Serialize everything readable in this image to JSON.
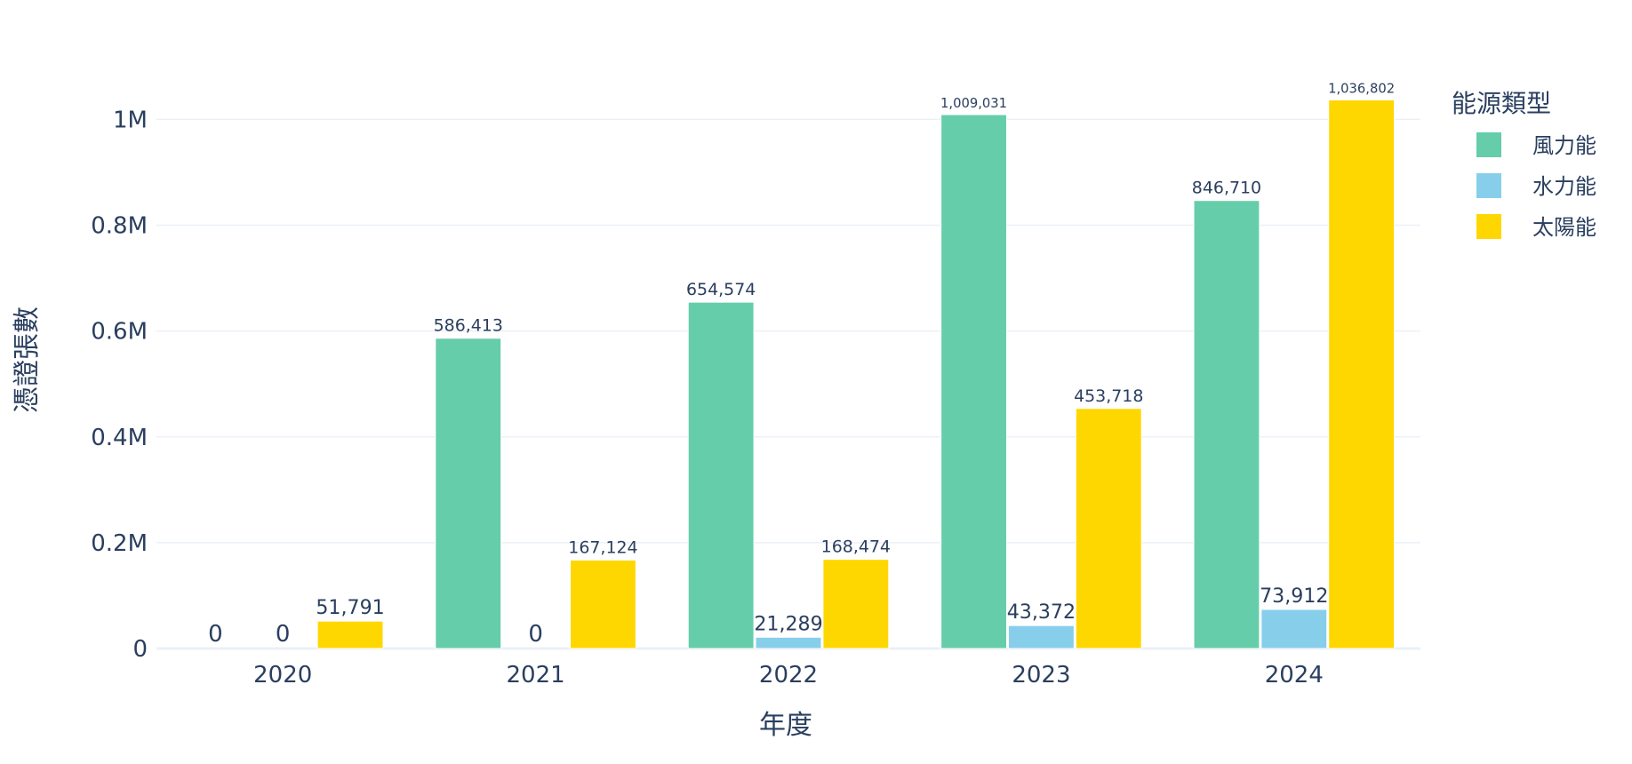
{
  "chart_data": {
    "type": "bar",
    "barmode": "group",
    "categories": [
      "2020",
      "2021",
      "2022",
      "2023",
      "2024"
    ],
    "series": [
      {
        "name": "風力能",
        "color": "#66cdaa",
        "values": [
          0,
          586413,
          654574,
          1009031,
          846710
        ]
      },
      {
        "name": "水力能",
        "color": "#87ceeb",
        "values": [
          0,
          0,
          21289,
          43372,
          73912
        ]
      },
      {
        "name": "太陽能",
        "color": "#ffd700",
        "values": [
          51791,
          167124,
          168474,
          453718,
          1036802
        ]
      }
    ],
    "data_labels": [
      [
        "0",
        "586,413",
        "654,574",
        "1,009,031",
        "846,710"
      ],
      [
        "0",
        "0",
        "21,289",
        "43,372",
        "73,912"
      ],
      [
        "51,791",
        "167,124",
        "168,474",
        "453,718",
        "1,036,802"
      ]
    ],
    "xlabel": "年度",
    "ylabel": "憑證張數",
    "ylim": [
      0,
      1091370
    ],
    "yticks": [
      0,
      200000,
      400000,
      600000,
      800000,
      1000000
    ],
    "ytick_labels": [
      "0",
      "0.2M",
      "0.4M",
      "0.6M",
      "0.8M",
      "1M"
    ],
    "legend_title": "能源類型",
    "legend_position": "top-right",
    "grid": true,
    "gridline_color": "#ebf0f8",
    "text_color": "#2a3f5f"
  }
}
